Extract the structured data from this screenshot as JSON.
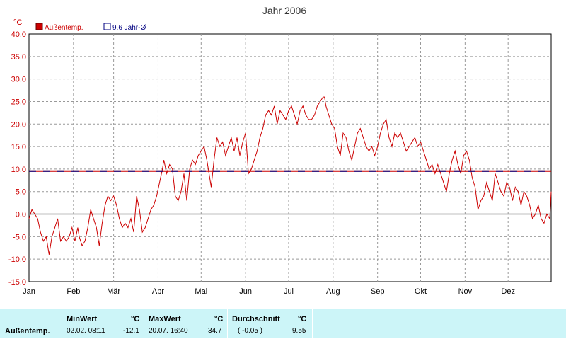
{
  "chart_data": {
    "type": "line",
    "title": "Jahr 2006",
    "ylabel": "°C",
    "ylim": [
      -15,
      40
    ],
    "yticks": [
      "40.0",
      "35.0",
      "30.0",
      "25.0",
      "20.0",
      "15.0",
      "10.0",
      "5.0",
      "0.0",
      "-5.0",
      "-10.0",
      "-15.0"
    ],
    "x_tick_labels": [
      "Jan",
      "Feb",
      "Mär",
      "Apr",
      "Mai",
      "Jun",
      "Jul",
      "Aug",
      "Sep",
      "Okt",
      "Nov",
      "Dez"
    ],
    "grid": true,
    "legend_position": "top-left",
    "series": [
      {
        "name": "Außentemp.",
        "color": "#cc0000",
        "points": [
          [
            1,
            -1
          ],
          [
            3,
            1
          ],
          [
            5,
            0
          ],
          [
            7,
            -1
          ],
          [
            9,
            -4
          ],
          [
            11,
            -6
          ],
          [
            13,
            -5
          ],
          [
            15,
            -9
          ],
          [
            17,
            -5
          ],
          [
            19,
            -3
          ],
          [
            21,
            -1
          ],
          [
            23,
            -6
          ],
          [
            25,
            -5
          ],
          [
            27,
            -6
          ],
          [
            29,
            -5
          ],
          [
            31,
            -3
          ],
          [
            33,
            -6
          ],
          [
            35,
            -3
          ],
          [
            36,
            -5
          ],
          [
            38,
            -7
          ],
          [
            40,
            -6
          ],
          [
            42,
            -3
          ],
          [
            44,
            1
          ],
          [
            46,
            -1
          ],
          [
            48,
            -3
          ],
          [
            50,
            -7
          ],
          [
            52,
            -2
          ],
          [
            54,
            2
          ],
          [
            56,
            4
          ],
          [
            58,
            3
          ],
          [
            60,
            4
          ],
          [
            62,
            2
          ],
          [
            64,
            -1
          ],
          [
            66,
            -3
          ],
          [
            68,
            -2
          ],
          [
            70,
            -3
          ],
          [
            72,
            -1
          ],
          [
            74,
            -4
          ],
          [
            76,
            4
          ],
          [
            78,
            1
          ],
          [
            80,
            -4
          ],
          [
            82,
            -3
          ],
          [
            84,
            -1
          ],
          [
            86,
            1
          ],
          [
            88,
            2
          ],
          [
            90,
            4
          ],
          [
            92,
            7
          ],
          [
            94,
            10
          ],
          [
            95,
            12
          ],
          [
            97,
            9
          ],
          [
            99,
            11
          ],
          [
            101,
            10
          ],
          [
            103,
            4
          ],
          [
            105,
            3
          ],
          [
            107,
            5
          ],
          [
            109,
            9
          ],
          [
            111,
            3
          ],
          [
            113,
            10
          ],
          [
            115,
            12
          ],
          [
            117,
            11
          ],
          [
            119,
            13
          ],
          [
            121,
            14
          ],
          [
            123,
            15
          ],
          [
            125,
            12
          ],
          [
            127,
            8
          ],
          [
            128,
            6
          ],
          [
            130,
            12
          ],
          [
            132,
            17
          ],
          [
            134,
            15
          ],
          [
            136,
            16
          ],
          [
            138,
            13
          ],
          [
            140,
            15
          ],
          [
            142,
            17
          ],
          [
            144,
            14
          ],
          [
            146,
            17
          ],
          [
            148,
            13
          ],
          [
            150,
            16
          ],
          [
            152,
            18
          ],
          [
            154,
            9
          ],
          [
            156,
            10
          ],
          [
            158,
            12
          ],
          [
            160,
            14
          ],
          [
            162,
            17
          ],
          [
            164,
            19
          ],
          [
            166,
            22
          ],
          [
            168,
            23
          ],
          [
            170,
            22
          ],
          [
            172,
            24
          ],
          [
            174,
            20
          ],
          [
            176,
            23
          ],
          [
            178,
            22
          ],
          [
            180,
            21
          ],
          [
            182,
            23
          ],
          [
            184,
            24
          ],
          [
            186,
            22
          ],
          [
            188,
            20
          ],
          [
            190,
            23
          ],
          [
            192,
            24
          ],
          [
            194,
            22
          ],
          [
            196,
            21
          ],
          [
            198,
            21
          ],
          [
            200,
            22
          ],
          [
            202,
            24
          ],
          [
            204,
            25
          ],
          [
            206,
            26
          ],
          [
            207,
            26
          ],
          [
            208,
            24
          ],
          [
            210,
            22
          ],
          [
            212,
            20
          ],
          [
            214,
            19
          ],
          [
            216,
            15
          ],
          [
            218,
            13
          ],
          [
            220,
            18
          ],
          [
            222,
            17
          ],
          [
            224,
            14
          ],
          [
            226,
            12
          ],
          [
            228,
            15
          ],
          [
            230,
            18
          ],
          [
            232,
            19
          ],
          [
            234,
            17
          ],
          [
            236,
            15
          ],
          [
            238,
            14
          ],
          [
            240,
            15
          ],
          [
            242,
            13
          ],
          [
            244,
            15
          ],
          [
            246,
            18
          ],
          [
            248,
            20
          ],
          [
            250,
            21
          ],
          [
            252,
            17
          ],
          [
            254,
            15
          ],
          [
            256,
            18
          ],
          [
            258,
            17
          ],
          [
            260,
            18
          ],
          [
            262,
            16
          ],
          [
            264,
            14
          ],
          [
            266,
            15
          ],
          [
            268,
            16
          ],
          [
            270,
            17
          ],
          [
            272,
            15
          ],
          [
            274,
            16
          ],
          [
            276,
            14
          ],
          [
            278,
            12
          ],
          [
            280,
            10
          ],
          [
            282,
            11
          ],
          [
            284,
            9
          ],
          [
            286,
            11
          ],
          [
            288,
            9
          ],
          [
            290,
            7
          ],
          [
            292,
            5
          ],
          [
            294,
            9
          ],
          [
            296,
            12
          ],
          [
            298,
            14
          ],
          [
            300,
            11
          ],
          [
            302,
            9
          ],
          [
            304,
            13
          ],
          [
            306,
            14
          ],
          [
            308,
            12
          ],
          [
            310,
            8
          ],
          [
            312,
            6
          ],
          [
            314,
            1
          ],
          [
            316,
            3
          ],
          [
            318,
            4
          ],
          [
            320,
            7
          ],
          [
            322,
            5
          ],
          [
            324,
            3
          ],
          [
            326,
            9
          ],
          [
            328,
            7
          ],
          [
            330,
            5
          ],
          [
            332,
            4
          ],
          [
            334,
            7
          ],
          [
            336,
            6
          ],
          [
            338,
            3
          ],
          [
            340,
            6
          ],
          [
            342,
            5
          ],
          [
            344,
            2
          ],
          [
            346,
            5
          ],
          [
            348,
            4
          ],
          [
            350,
            2
          ],
          [
            352,
            -1
          ],
          [
            354,
            0
          ],
          [
            356,
            2
          ],
          [
            358,
            -1
          ],
          [
            360,
            -2
          ],
          [
            362,
            0
          ],
          [
            364,
            -1
          ],
          [
            365,
            5
          ]
        ]
      },
      {
        "name": "9.6 Jahr-Ø",
        "color": "#000080",
        "dash_color": "#cc0000",
        "points": [
          [
            1,
            9.55
          ],
          [
            365,
            9.55
          ]
        ]
      }
    ]
  },
  "stats_table": {
    "row_label": "Außentemp.",
    "min": {
      "header": "MinWert",
      "unit": "°C",
      "datetime": "02.02.  08:11",
      "value": "-12.1"
    },
    "max": {
      "header": "MaxWert",
      "unit": "°C",
      "datetime": "20.07.  16:40",
      "value": "34.7"
    },
    "avg": {
      "header": "Durchschnitt",
      "unit": "°C",
      "note": "( -0.05 )",
      "value": "9.55"
    }
  }
}
